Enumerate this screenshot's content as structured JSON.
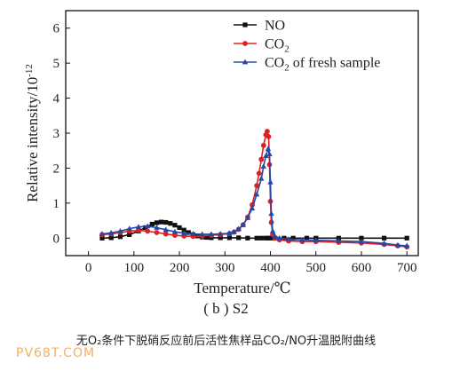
{
  "chart_data": {
    "type": "line",
    "xlabel": "Temperature/℃",
    "ylabel": "Relative intensity/10",
    "ylabel_exp": "-12",
    "xlim": [
      -50,
      725
    ],
    "ylim": [
      -0.5,
      6.5
    ],
    "xticks": [
      0,
      100,
      200,
      300,
      400,
      500,
      600,
      700
    ],
    "yticks": [
      0,
      1,
      2,
      3,
      4,
      5,
      6
    ],
    "grid": false,
    "legend_position": "top-right",
    "series": [
      {
        "name": "NO",
        "color": "#111111",
        "marker": "square",
        "x": [
          30,
          50,
          70,
          90,
          110,
          125,
          140,
          150,
          160,
          170,
          180,
          190,
          200,
          210,
          220,
          230,
          240,
          250,
          260,
          270,
          290,
          310,
          330,
          350,
          370,
          380,
          390,
          395,
          400,
          410,
          430,
          450,
          480,
          500,
          550,
          600,
          650,
          700
        ],
        "y": [
          0.0,
          0.01,
          0.04,
          0.1,
          0.2,
          0.3,
          0.4,
          0.44,
          0.46,
          0.45,
          0.42,
          0.37,
          0.3,
          0.23,
          0.16,
          0.1,
          0.06,
          0.03,
          0.02,
          0.01,
          0.01,
          0.01,
          0.01,
          0.0,
          0.0,
          0.0,
          0.0,
          0.0,
          0.0,
          0.0,
          0.0,
          0.0,
          0.0,
          0.0,
          0.0,
          0.0,
          0.0,
          0.0
        ]
      },
      {
        "name": "CO",
        "name_sub": "2",
        "color": "#e02020",
        "marker": "circle",
        "x": [
          30,
          50,
          70,
          90,
          110,
          130,
          150,
          170,
          190,
          210,
          230,
          250,
          270,
          290,
          310,
          320,
          330,
          340,
          350,
          360,
          370,
          375,
          380,
          385,
          390,
          393,
          396,
          398,
          400,
          402,
          405,
          410,
          420,
          440,
          470,
          500,
          550,
          600,
          650,
          680,
          700
        ],
        "y": [
          0.1,
          0.12,
          0.16,
          0.2,
          0.22,
          0.2,
          0.16,
          0.12,
          0.08,
          0.06,
          0.05,
          0.06,
          0.08,
          0.1,
          0.13,
          0.17,
          0.25,
          0.38,
          0.6,
          0.95,
          1.5,
          1.85,
          2.25,
          2.65,
          2.95,
          3.05,
          2.9,
          2.1,
          1.05,
          0.45,
          0.1,
          0.0,
          -0.05,
          -0.08,
          -0.1,
          -0.1,
          -0.12,
          -0.14,
          -0.18,
          -0.22,
          -0.25
        ]
      },
      {
        "name": "CO",
        "name_sub": "2",
        "name_suffix": " of fresh sample",
        "color": "#2448a8",
        "marker": "triangle",
        "x": [
          30,
          50,
          70,
          90,
          110,
          130,
          150,
          170,
          190,
          210,
          230,
          250,
          270,
          290,
          310,
          320,
          330,
          340,
          350,
          360,
          370,
          380,
          385,
          390,
          395,
          398,
          400,
          402,
          405,
          410,
          420,
          440,
          470,
          500,
          550,
          600,
          650,
          680,
          700
        ],
        "y": [
          0.12,
          0.15,
          0.2,
          0.27,
          0.32,
          0.34,
          0.3,
          0.24,
          0.18,
          0.14,
          0.12,
          0.11,
          0.11,
          0.12,
          0.14,
          0.18,
          0.26,
          0.38,
          0.58,
          0.85,
          1.25,
          1.7,
          2.05,
          2.35,
          2.55,
          2.4,
          1.6,
          0.7,
          0.2,
          0.05,
          0.0,
          -0.03,
          -0.05,
          -0.06,
          -0.08,
          -0.1,
          -0.15,
          -0.2,
          -0.22
        ]
      }
    ]
  },
  "caption": {
    "subfigure": "( b ) S2",
    "chinese": "无O₂条件下脱硝反应前后活性焦样品CO₂/NO升温脱附曲线"
  },
  "watermark": "PV68T.COM"
}
